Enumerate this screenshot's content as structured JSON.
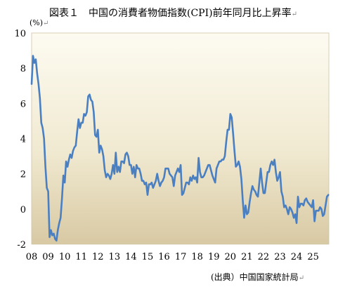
{
  "title": "図表１　中国の消費者物価指数(CPI)前年同月比上昇率",
  "unit": "(%)",
  "source": "(出典）中国国家統計局",
  "paragraph_mark": "↵",
  "chart_data": {
    "type": "line",
    "title": "図表１　中国の消費者物価指数(CPI)前年同月比上昇率",
    "ylabel": "(%)",
    "xlabel": "",
    "ylim": [
      -2,
      10
    ],
    "yticks": [
      -2,
      0,
      2,
      4,
      6,
      8,
      10
    ],
    "xlim": [
      2008.0,
      2025.95
    ],
    "xticks": [
      "08",
      "09",
      "10",
      "11",
      "12",
      "13",
      "14",
      "15",
      "16",
      "17",
      "18",
      "19",
      "20",
      "21",
      "22",
      "23",
      "24",
      "25"
    ],
    "grid": false,
    "legend": "none",
    "line_color": "#4a7fc1",
    "series": [
      {
        "x_start": "2008-01",
        "frequency": "monthly",
        "values": [
          7.1,
          8.7,
          8.3,
          8.5,
          7.7,
          7.1,
          6.3,
          4.9,
          4.6,
          4.0,
          2.4,
          1.2,
          1.0,
          -1.6,
          -1.2,
          -1.5,
          -1.4,
          -1.7,
          -1.8,
          -1.2,
          -0.8,
          -0.5,
          0.6,
          1.9,
          1.5,
          2.7,
          2.4,
          2.8,
          3.1,
          2.9,
          3.3,
          3.5,
          3.6,
          4.4,
          5.1,
          4.6,
          4.9,
          4.9,
          5.4,
          5.3,
          5.5,
          6.4,
          6.5,
          6.2,
          6.1,
          5.5,
          4.2,
          4.1,
          4.5,
          3.2,
          3.6,
          3.4,
          3.0,
          2.2,
          1.8,
          2.0,
          1.9,
          1.7,
          2.0,
          2.5,
          2.0,
          3.2,
          2.1,
          2.4,
          2.1,
          2.7,
          2.7,
          2.6,
          3.1,
          3.2,
          3.0,
          2.5,
          2.5,
          2.0,
          2.4,
          1.8,
          2.5,
          2.3,
          2.3,
          2.0,
          1.6,
          1.6,
          1.4,
          1.5,
          0.8,
          1.4,
          1.4,
          1.5,
          1.2,
          1.4,
          1.6,
          2.0,
          1.6,
          1.3,
          1.5,
          1.6,
          1.8,
          2.3,
          2.3,
          2.3,
          2.0,
          1.9,
          1.8,
          1.3,
          1.9,
          2.1,
          2.3,
          2.1,
          2.5,
          0.8,
          0.9,
          1.2,
          1.5,
          1.5,
          1.4,
          1.8,
          1.6,
          1.9,
          1.7,
          1.8,
          1.5,
          2.9,
          2.1,
          1.8,
          1.8,
          1.9,
          2.1,
          2.3,
          2.5,
          2.5,
          2.2,
          1.9,
          1.7,
          1.5,
          2.3,
          2.5,
          2.7,
          2.7,
          2.8,
          2.8,
          3.0,
          3.8,
          4.5,
          4.5,
          5.4,
          5.2,
          4.3,
          3.3,
          2.4,
          2.5,
          2.7,
          2.4,
          1.7,
          0.5,
          -0.5,
          0.2,
          -0.3,
          -0.2,
          0.4,
          0.9,
          1.3,
          1.1,
          1.0,
          0.8,
          0.7,
          1.5,
          2.3,
          1.5,
          0.9,
          0.9,
          1.5,
          2.1,
          2.1,
          2.5,
          2.7,
          2.5,
          2.8,
          2.1,
          1.6,
          1.8,
          2.1,
          1.0,
          0.7,
          0.1,
          0.2,
          0.0,
          -0.3,
          0.1,
          0.0,
          -0.2,
          -0.5,
          -0.3,
          -0.8,
          0.7,
          0.1,
          0.3,
          0.3,
          0.2,
          0.5,
          0.6,
          0.4,
          0.3,
          0.2,
          0.1,
          0.5,
          -0.7,
          -0.1,
          -0.1,
          -0.1,
          0.1,
          0.0,
          -0.4,
          -0.3,
          0.2,
          0.7,
          0.8
        ]
      }
    ]
  }
}
